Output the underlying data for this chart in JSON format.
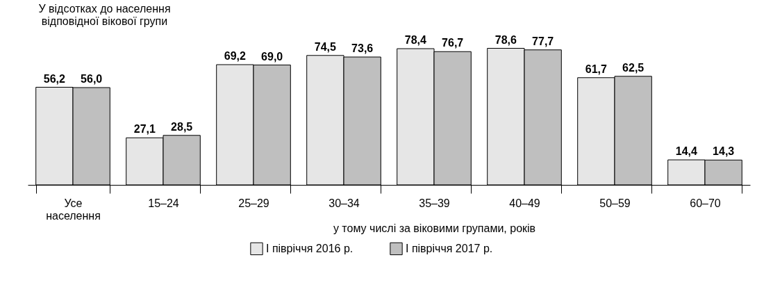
{
  "chart_data": {
    "type": "bar",
    "ylabel": "У відсотках до населення\nвідповідної вікової групи",
    "xlabel": "у тому числі за віковими групами, років",
    "categories": [
      "Усе\nнаселення",
      "15–24",
      "25–29",
      "30–34",
      "35–39",
      "40–49",
      "50–59",
      "60–70"
    ],
    "series": [
      {
        "name": "I півріччя 2016 р.",
        "color": "#e6e6e6",
        "values": [
          56.2,
          27.1,
          69.2,
          74.5,
          78.4,
          78.6,
          61.7,
          14.4
        ],
        "value_labels": [
          "56,2",
          "27,1",
          "69,2",
          "74,5",
          "78,4",
          "78,6",
          "61,7",
          "14,4"
        ]
      },
      {
        "name": "I півріччя 2017 р.",
        "color": "#bfbfbf",
        "values": [
          56.0,
          28.5,
          69.0,
          73.6,
          76.7,
          77.7,
          62.5,
          14.3
        ],
        "value_labels": [
          "56,0",
          "28,5",
          "69,0",
          "73,6",
          "76,7",
          "77,7",
          "62,5",
          "14,3"
        ]
      }
    ],
    "legend": "bottom",
    "grid": false
  }
}
